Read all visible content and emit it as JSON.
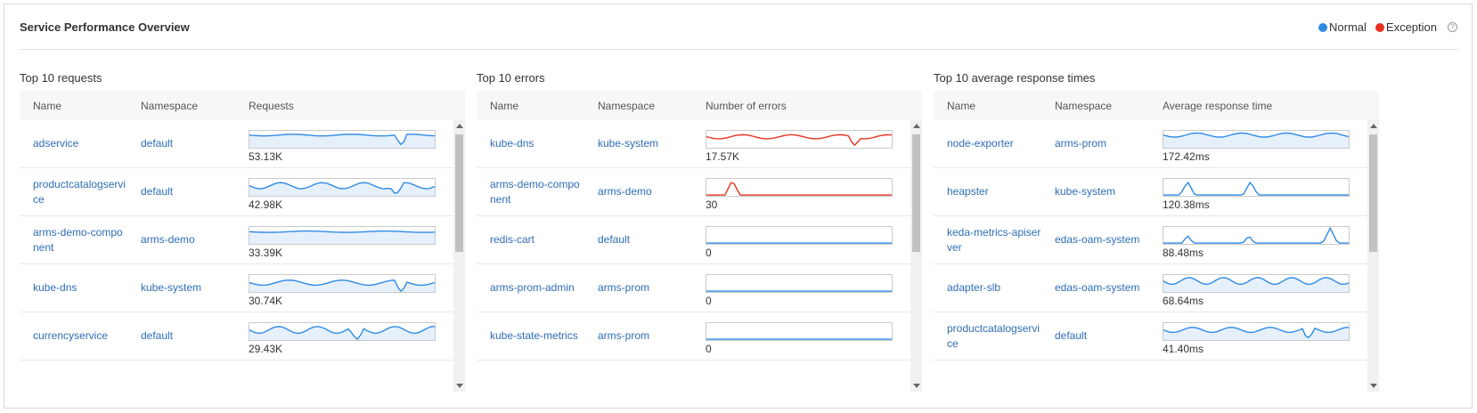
{
  "card": {
    "title": "Service Performance Overview",
    "legend": [
      {
        "label": "Normal",
        "color": "#2f8ae5"
      },
      {
        "label": "Exception",
        "color": "#e8321f"
      }
    ],
    "help_glyph": "?"
  },
  "panels": [
    {
      "title": "Top 10 requests",
      "columns": [
        "Name",
        "Namespace",
        "Requests"
      ],
      "rows": [
        {
          "name": "adservice",
          "namespace": "default",
          "value": "53.13K",
          "style": "normal",
          "area": true,
          "shape": "req1"
        },
        {
          "name": "productcatalogservice",
          "namespace": "default",
          "value": "42.98K",
          "style": "normal",
          "area": true,
          "shape": "req2"
        },
        {
          "name": "arms-demo-component",
          "namespace": "arms-demo",
          "value": "33.39K",
          "style": "normal",
          "area": true,
          "shape": "req3"
        },
        {
          "name": "kube-dns",
          "namespace": "kube-system",
          "value": "30.74K",
          "style": "normal",
          "area": true,
          "shape": "req4"
        },
        {
          "name": "currencyservice",
          "namespace": "default",
          "value": "29.43K",
          "style": "normal",
          "area": true,
          "shape": "req5"
        }
      ]
    },
    {
      "title": "Top 10 errors",
      "columns": [
        "Name",
        "Namespace",
        "Number of errors"
      ],
      "rows": [
        {
          "name": "kube-dns",
          "namespace": "kube-system",
          "value": "17.57K",
          "style": "exception",
          "area": false,
          "shape": "err1"
        },
        {
          "name": "arms-demo-component",
          "namespace": "arms-demo",
          "value": "30",
          "style": "exception",
          "area": false,
          "shape": "err2"
        },
        {
          "name": "redis-cart",
          "namespace": "default",
          "value": "0",
          "style": "normal",
          "area": false,
          "shape": "flat"
        },
        {
          "name": "arms-prom-admin",
          "namespace": "arms-prom",
          "value": "0",
          "style": "normal",
          "area": false,
          "shape": "flat"
        },
        {
          "name": "kube-state-metrics",
          "namespace": "arms-prom",
          "value": "0",
          "style": "normal",
          "area": false,
          "shape": "flat"
        }
      ]
    },
    {
      "title": "Top 10 average response times",
      "columns": [
        "Name",
        "Namespace",
        "Average response time"
      ],
      "rows": [
        {
          "name": "node-exporter",
          "namespace": "arms-prom",
          "value": "172.42ms",
          "style": "normal",
          "area": true,
          "shape": "rt1"
        },
        {
          "name": "heapster",
          "namespace": "kube-system",
          "value": "120.38ms",
          "style": "normal",
          "area": false,
          "shape": "rt2"
        },
        {
          "name": "keda-metrics-apiserver",
          "namespace": "edas-oam-system",
          "value": "88.48ms",
          "style": "normal",
          "area": false,
          "shape": "rt3"
        },
        {
          "name": "adapter-slb",
          "namespace": "edas-oam-system",
          "value": "68.64ms",
          "style": "normal",
          "area": true,
          "shape": "rt4"
        },
        {
          "name": "productcatalogservice",
          "namespace": "default",
          "value": "41.40ms",
          "style": "normal",
          "area": true,
          "shape": "rt5"
        }
      ]
    }
  ]
}
